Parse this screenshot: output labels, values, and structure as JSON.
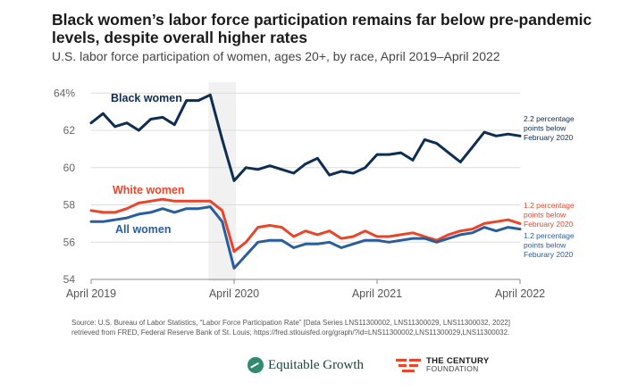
{
  "header": {
    "title": "Black women’s labor force participation remains far below pre-pandemic levels, despite overall higher rates",
    "subtitle": "U.S. labor force participation of women, ages 20+, by race, April 2019–April 2022"
  },
  "source": "Source: U.S. Bureau of Labor Statistics, “Labor Force Participation Rate” [Data Series LNS11300002, LNS11300029, LNS11300032, 2022] retrieved from FRED, Federal Reserve Bank of St. Louis; https://fred.stlouisfed.org/graph/?id=LNS11300002,LNS11300029,LNS11300032.",
  "logos": {
    "equitable_growth": "Equitable Growth",
    "century_line1": "THE CENTURY",
    "century_line2": "FOUNDATION"
  },
  "chart_data": {
    "type": "line",
    "x": [
      "2019-04",
      "2019-05",
      "2019-06",
      "2019-07",
      "2019-08",
      "2019-09",
      "2019-10",
      "2019-11",
      "2019-12",
      "2020-01",
      "2020-02",
      "2020-03",
      "2020-04",
      "2020-05",
      "2020-06",
      "2020-07",
      "2020-08",
      "2020-09",
      "2020-10",
      "2020-11",
      "2020-12",
      "2021-01",
      "2021-02",
      "2021-03",
      "2021-04",
      "2021-05",
      "2021-06",
      "2021-07",
      "2021-08",
      "2021-09",
      "2021-10",
      "2021-11",
      "2021-12",
      "2022-01",
      "2022-02",
      "2022-03",
      "2022-04"
    ],
    "xticks": [
      "April 2019",
      "April 2020",
      "April 2021",
      "April 2022"
    ],
    "yticks": [
      "54",
      "56",
      "58",
      "60",
      "62",
      "64%"
    ],
    "ylim": [
      54,
      64.3
    ],
    "grid": true,
    "shaded_period": [
      "2020-02",
      "2020-04"
    ],
    "series": [
      {
        "name": "Black women",
        "color": "#0d2d52",
        "values": [
          62.4,
          62.9,
          62.2,
          62.4,
          62.0,
          62.6,
          62.7,
          62.3,
          63.6,
          63.6,
          63.9,
          61.5,
          59.3,
          60.0,
          59.9,
          60.1,
          59.9,
          59.7,
          60.2,
          60.5,
          59.6,
          59.8,
          59.7,
          60.0,
          60.7,
          60.7,
          60.8,
          60.4,
          61.5,
          61.3,
          60.8,
          60.3,
          61.1,
          61.9,
          61.7,
          61.8,
          61.7
        ],
        "annotation": [
          "2.2 percentage",
          "points below",
          "February 2020"
        ]
      },
      {
        "name": "White women",
        "color": "#e8452a",
        "values": [
          57.7,
          57.6,
          57.6,
          57.8,
          58.1,
          58.2,
          58.3,
          58.2,
          58.2,
          58.2,
          58.2,
          57.7,
          55.5,
          56.0,
          56.8,
          56.9,
          56.8,
          56.3,
          56.6,
          56.4,
          56.6,
          56.2,
          56.3,
          56.6,
          56.3,
          56.3,
          56.4,
          56.5,
          56.3,
          56.1,
          56.4,
          56.6,
          56.7,
          57.0,
          57.1,
          57.2,
          57.0
        ],
        "annotation": [
          "1.2 percentage",
          "points below",
          "February 2020"
        ]
      },
      {
        "name": "All women",
        "color": "#2a5d9c",
        "values": [
          57.1,
          57.1,
          57.2,
          57.3,
          57.5,
          57.6,
          57.8,
          57.6,
          57.8,
          57.8,
          57.9,
          57.1,
          54.6,
          55.3,
          56.0,
          56.1,
          56.1,
          55.7,
          55.9,
          55.9,
          56.0,
          55.7,
          55.9,
          56.1,
          56.1,
          56.0,
          56.1,
          56.2,
          56.2,
          56.0,
          56.2,
          56.4,
          56.5,
          56.8,
          56.6,
          56.8,
          56.7
        ],
        "annotation": [
          "1.2 percentage",
          "points below",
          "Feburary 2020"
        ]
      }
    ]
  }
}
